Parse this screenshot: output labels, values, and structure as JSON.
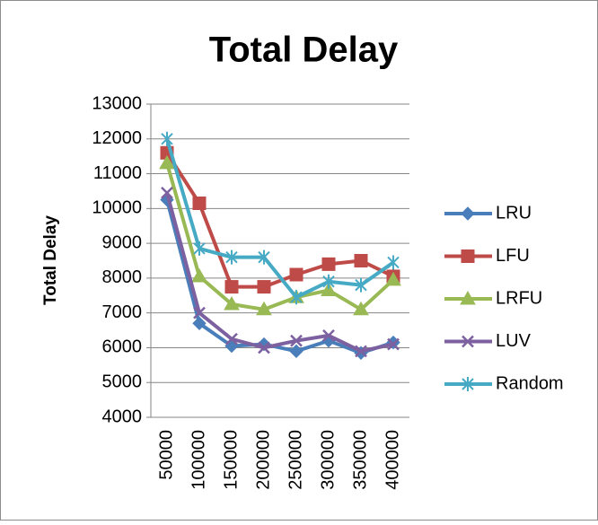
{
  "chart_data": {
    "type": "line",
    "title": "Total Delay",
    "y_label": "Total Delay",
    "categories": [
      50000,
      100000,
      150000,
      200000,
      250000,
      300000,
      350000,
      400000
    ],
    "series": [
      {
        "name": "LRU",
        "color": "#4a7ebb",
        "marker": "diamond",
        "values": [
          10250,
          6700,
          6050,
          6100,
          5900,
          6200,
          5850,
          6150
        ]
      },
      {
        "name": "LFU",
        "color": "#be4b48",
        "marker": "square",
        "values": [
          11600,
          10150,
          7750,
          7750,
          8100,
          8400,
          8500,
          8050
        ]
      },
      {
        "name": "LRFU",
        "color": "#98b954",
        "marker": "triangle",
        "values": [
          11300,
          8050,
          7250,
          7100,
          7450,
          7650,
          7100,
          7950
        ]
      },
      {
        "name": "LUV",
        "color": "#7d60a0",
        "marker": "x",
        "values": [
          10450,
          7000,
          6250,
          6000,
          6200,
          6350,
          5900,
          6100
        ]
      },
      {
        "name": "Random",
        "color": "#46aac5",
        "marker": "star",
        "values": [
          12000,
          8850,
          8600,
          8600,
          7450,
          7900,
          7800,
          8450
        ]
      }
    ],
    "ylim": [
      4000,
      13000
    ],
    "yticks": [
      4000,
      5000,
      6000,
      7000,
      8000,
      9000,
      10000,
      11000,
      12000,
      13000
    ],
    "grid": true,
    "legend": "right"
  }
}
